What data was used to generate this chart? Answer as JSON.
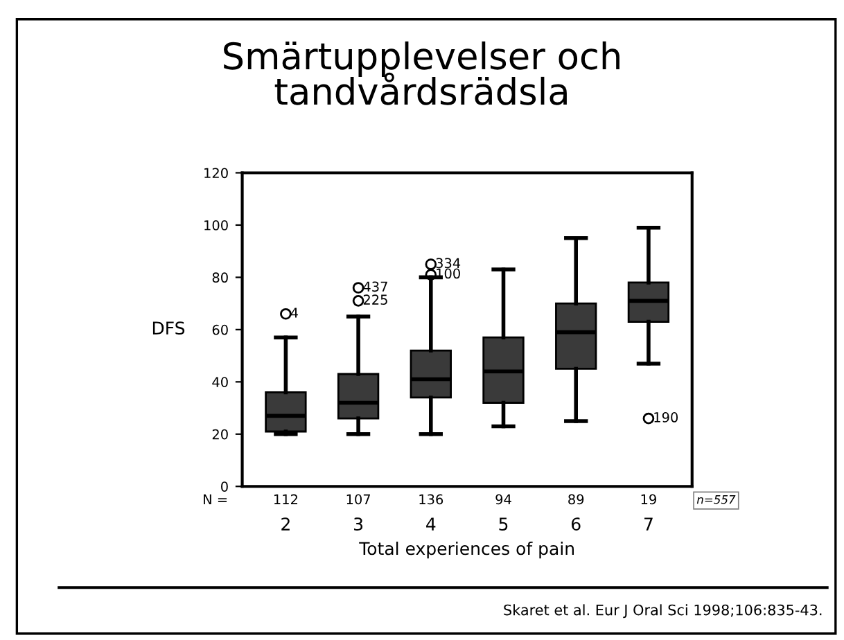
{
  "chart_data": {
    "type": "box",
    "title": "Smärtupplevelser och\ntandvårdsrädsla",
    "xlabel": "Total experiences of pain",
    "ylabel": "DFS",
    "categories": [
      "2",
      "3",
      "4",
      "5",
      "6",
      "7"
    ],
    "boxes": [
      {
        "low": 20,
        "q1": 21,
        "median": 27,
        "q3": 36,
        "high": 57,
        "outliers": [
          66
        ]
      },
      {
        "low": 20,
        "q1": 26,
        "median": 32,
        "q3": 43,
        "high": 65,
        "outliers": [
          76,
          71
        ]
      },
      {
        "low": 20,
        "q1": 34,
        "median": 41,
        "q3": 52,
        "high": 80,
        "outliers": [
          85,
          81
        ]
      },
      {
        "low": 23,
        "q1": 32,
        "median": 44,
        "q3": 57,
        "high": 83
      },
      {
        "low": 25,
        "q1": 45,
        "median": 59,
        "q3": 70,
        "high": 95
      },
      {
        "low": 47,
        "q1": 63,
        "median": 71,
        "q3": 78,
        "high": 99,
        "outliers": [
          26
        ]
      }
    ],
    "color": "#3a3a3a",
    "ylim": [
      0,
      120
    ],
    "yticks": [
      0,
      20,
      40,
      60,
      80,
      100,
      120
    ],
    "grid": false,
    "annotations": [
      "N =",
      "n=557",
      "Skaret et al. Eur J Oral Sci 1998;106:835-43.",
      "4",
      "437",
      "225",
      "334",
      "100",
      "190",
      "112",
      "107",
      "136",
      "94",
      "89",
      "19"
    ]
  }
}
